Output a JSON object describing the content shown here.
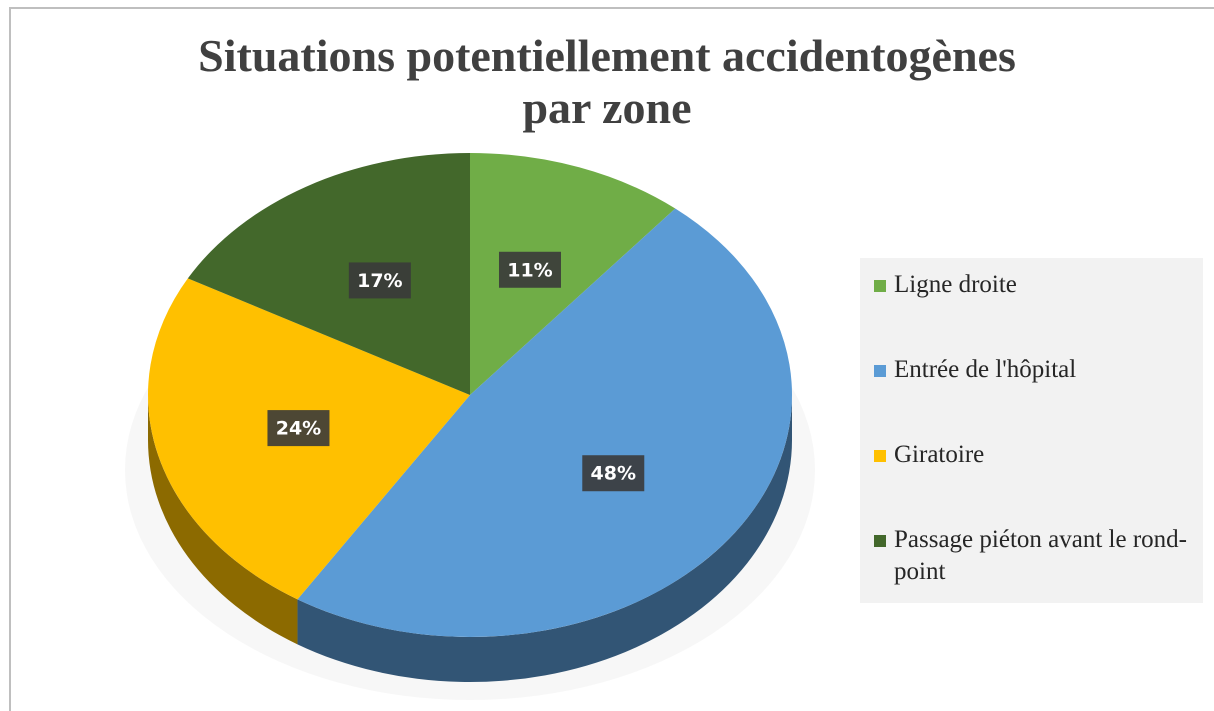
{
  "chart_data": {
    "type": "pie",
    "title": "Situations potentiellement accidentogènes par zone",
    "categories": [
      "Ligne droite",
      "Entrée de l'hôpital",
      "Giratoire",
      "Passage piéton avant le rond-point"
    ],
    "values": [
      11,
      48,
      24,
      17
    ],
    "value_labels": [
      "11%",
      "48%",
      "24%",
      "17%"
    ],
    "colors": [
      "#70ad47",
      "#5b9bd5",
      "#ffc000",
      "#43682b"
    ],
    "legend": "right"
  }
}
